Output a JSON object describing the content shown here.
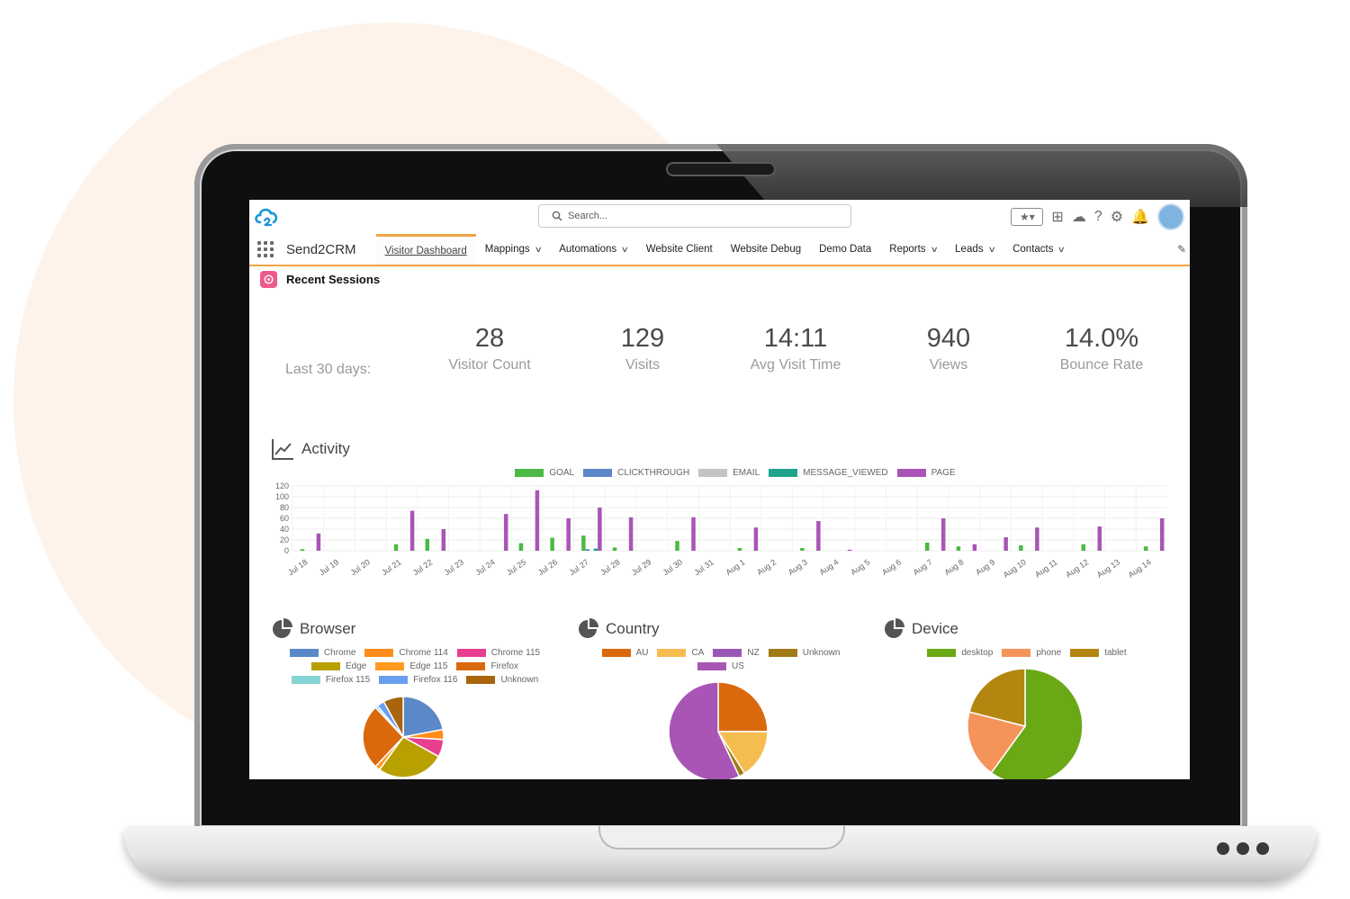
{
  "app": {
    "name": "Send2CRM",
    "search_placeholder": "Search..."
  },
  "nav": {
    "tabs": [
      {
        "label": "Visitor Dashboard",
        "active": true,
        "dropdown": false
      },
      {
        "label": "Mappings",
        "dropdown": true
      },
      {
        "label": "Automations",
        "dropdown": true
      },
      {
        "label": "Website Client",
        "dropdown": false
      },
      {
        "label": "Website Debug",
        "dropdown": false
      },
      {
        "label": "Demo Data",
        "dropdown": false
      },
      {
        "label": "Reports",
        "dropdown": true
      },
      {
        "label": "Leads",
        "dropdown": true
      },
      {
        "label": "Contacts",
        "dropdown": true
      }
    ]
  },
  "section": {
    "title": "Recent Sessions"
  },
  "stats": {
    "period_label": "Last 30 days:",
    "items": [
      {
        "value": "28",
        "label": "Visitor Count"
      },
      {
        "value": "129",
        "label": "Visits"
      },
      {
        "value": "14:11",
        "label": "Avg Visit Time"
      },
      {
        "value": "940",
        "label": "Views"
      },
      {
        "value": "14.0%",
        "label": "Bounce Rate"
      }
    ]
  },
  "colors": {
    "accent": "#f0a345",
    "goal": "#4cb944",
    "clickthrough": "#5b88c8",
    "email": "#c4c4c4",
    "message_viewed": "#1fa38a",
    "page": "#a855b5"
  },
  "chart_data": [
    {
      "type": "bar",
      "title": "Activity",
      "categories": [
        "Jul 18",
        "Jul 19",
        "Jul 20",
        "Jul 21",
        "Jul 22",
        "Jul 23",
        "Jul 24",
        "Jul 25",
        "Jul 26",
        "Jul 27",
        "Jul 28",
        "Jul 29",
        "Jul 30",
        "Jul 31",
        "Aug 1",
        "Aug 2",
        "Aug 3",
        "Aug 4",
        "Aug 5",
        "Aug 6",
        "Aug 7",
        "Aug 8",
        "Aug 9",
        "Aug 10",
        "Aug 11",
        "Aug 12",
        "Aug 13",
        "Aug 14"
      ],
      "series": [
        {
          "name": "GOAL",
          "color": "#4cb944",
          "values": [
            3,
            0,
            0,
            12,
            22,
            0,
            0,
            14,
            24,
            28,
            6,
            0,
            18,
            0,
            5,
            0,
            5,
            0,
            0,
            0,
            15,
            8,
            0,
            10,
            0,
            12,
            0,
            8
          ]
        },
        {
          "name": "CLICKTHROUGH",
          "color": "#5b88c8",
          "values": [
            0,
            0,
            0,
            0,
            0,
            0,
            0,
            0,
            0,
            3,
            0,
            0,
            0,
            0,
            0,
            0,
            0,
            0,
            0,
            0,
            0,
            0,
            0,
            0,
            0,
            0,
            0,
            0
          ]
        },
        {
          "name": "EMAIL",
          "color": "#c4c4c4",
          "values": [
            0,
            0,
            0,
            0,
            0,
            0,
            0,
            0,
            0,
            0,
            0,
            0,
            0,
            0,
            0,
            0,
            0,
            0,
            0,
            0,
            0,
            0,
            0,
            0,
            0,
            0,
            0,
            0
          ]
        },
        {
          "name": "MESSAGE_VIEWED",
          "color": "#1fa38a",
          "values": [
            0,
            0,
            0,
            0,
            0,
            0,
            0,
            0,
            0,
            4,
            0,
            0,
            0,
            0,
            0,
            0,
            0,
            0,
            0,
            0,
            0,
            0,
            0,
            0,
            0,
            0,
            0,
            0
          ]
        },
        {
          "name": "PAGE",
          "color": "#a855b5",
          "values": [
            32,
            0,
            0,
            74,
            40,
            0,
            68,
            112,
            60,
            80,
            62,
            0,
            62,
            0,
            43,
            0,
            55,
            2,
            0,
            0,
            60,
            12,
            25,
            43,
            0,
            45,
            0,
            60
          ]
        }
      ],
      "ylim": [
        0,
        120
      ],
      "yticks": [
        0,
        20,
        40,
        60,
        80,
        100,
        120
      ],
      "legend": "top",
      "grid": true
    },
    {
      "type": "pie",
      "title": "Browser",
      "labels": [
        "Chrome",
        "Chrome 114",
        "Chrome 115",
        "Edge",
        "Edge 115",
        "Firefox",
        "Firefox 115",
        "Firefox 116",
        "Unknown"
      ],
      "colors": [
        "#5b88c8",
        "#ff8c1a",
        "#e83f8f",
        "#b8a000",
        "#ff9a1f",
        "#d9690c",
        "#84d4d4",
        "#6a9ff0",
        "#a8650e"
      ],
      "values": [
        22,
        4,
        7,
        27,
        2,
        26,
        1,
        3,
        8
      ]
    },
    {
      "type": "pie",
      "title": "Country",
      "labels": [
        "AU",
        "CA",
        "NZ",
        "Unknown",
        "US"
      ],
      "colors": [
        "#d9690c",
        "#f5bc50",
        "#9b59b6",
        "#a07b16",
        "#a855b5"
      ],
      "values": [
        25,
        16,
        0,
        2,
        57
      ]
    },
    {
      "type": "pie",
      "title": "Device",
      "labels": [
        "desktop",
        "phone",
        "tablet"
      ],
      "colors": [
        "#6aa815",
        "#f5945a",
        "#b3860f"
      ],
      "values": [
        60,
        19,
        21
      ]
    }
  ]
}
